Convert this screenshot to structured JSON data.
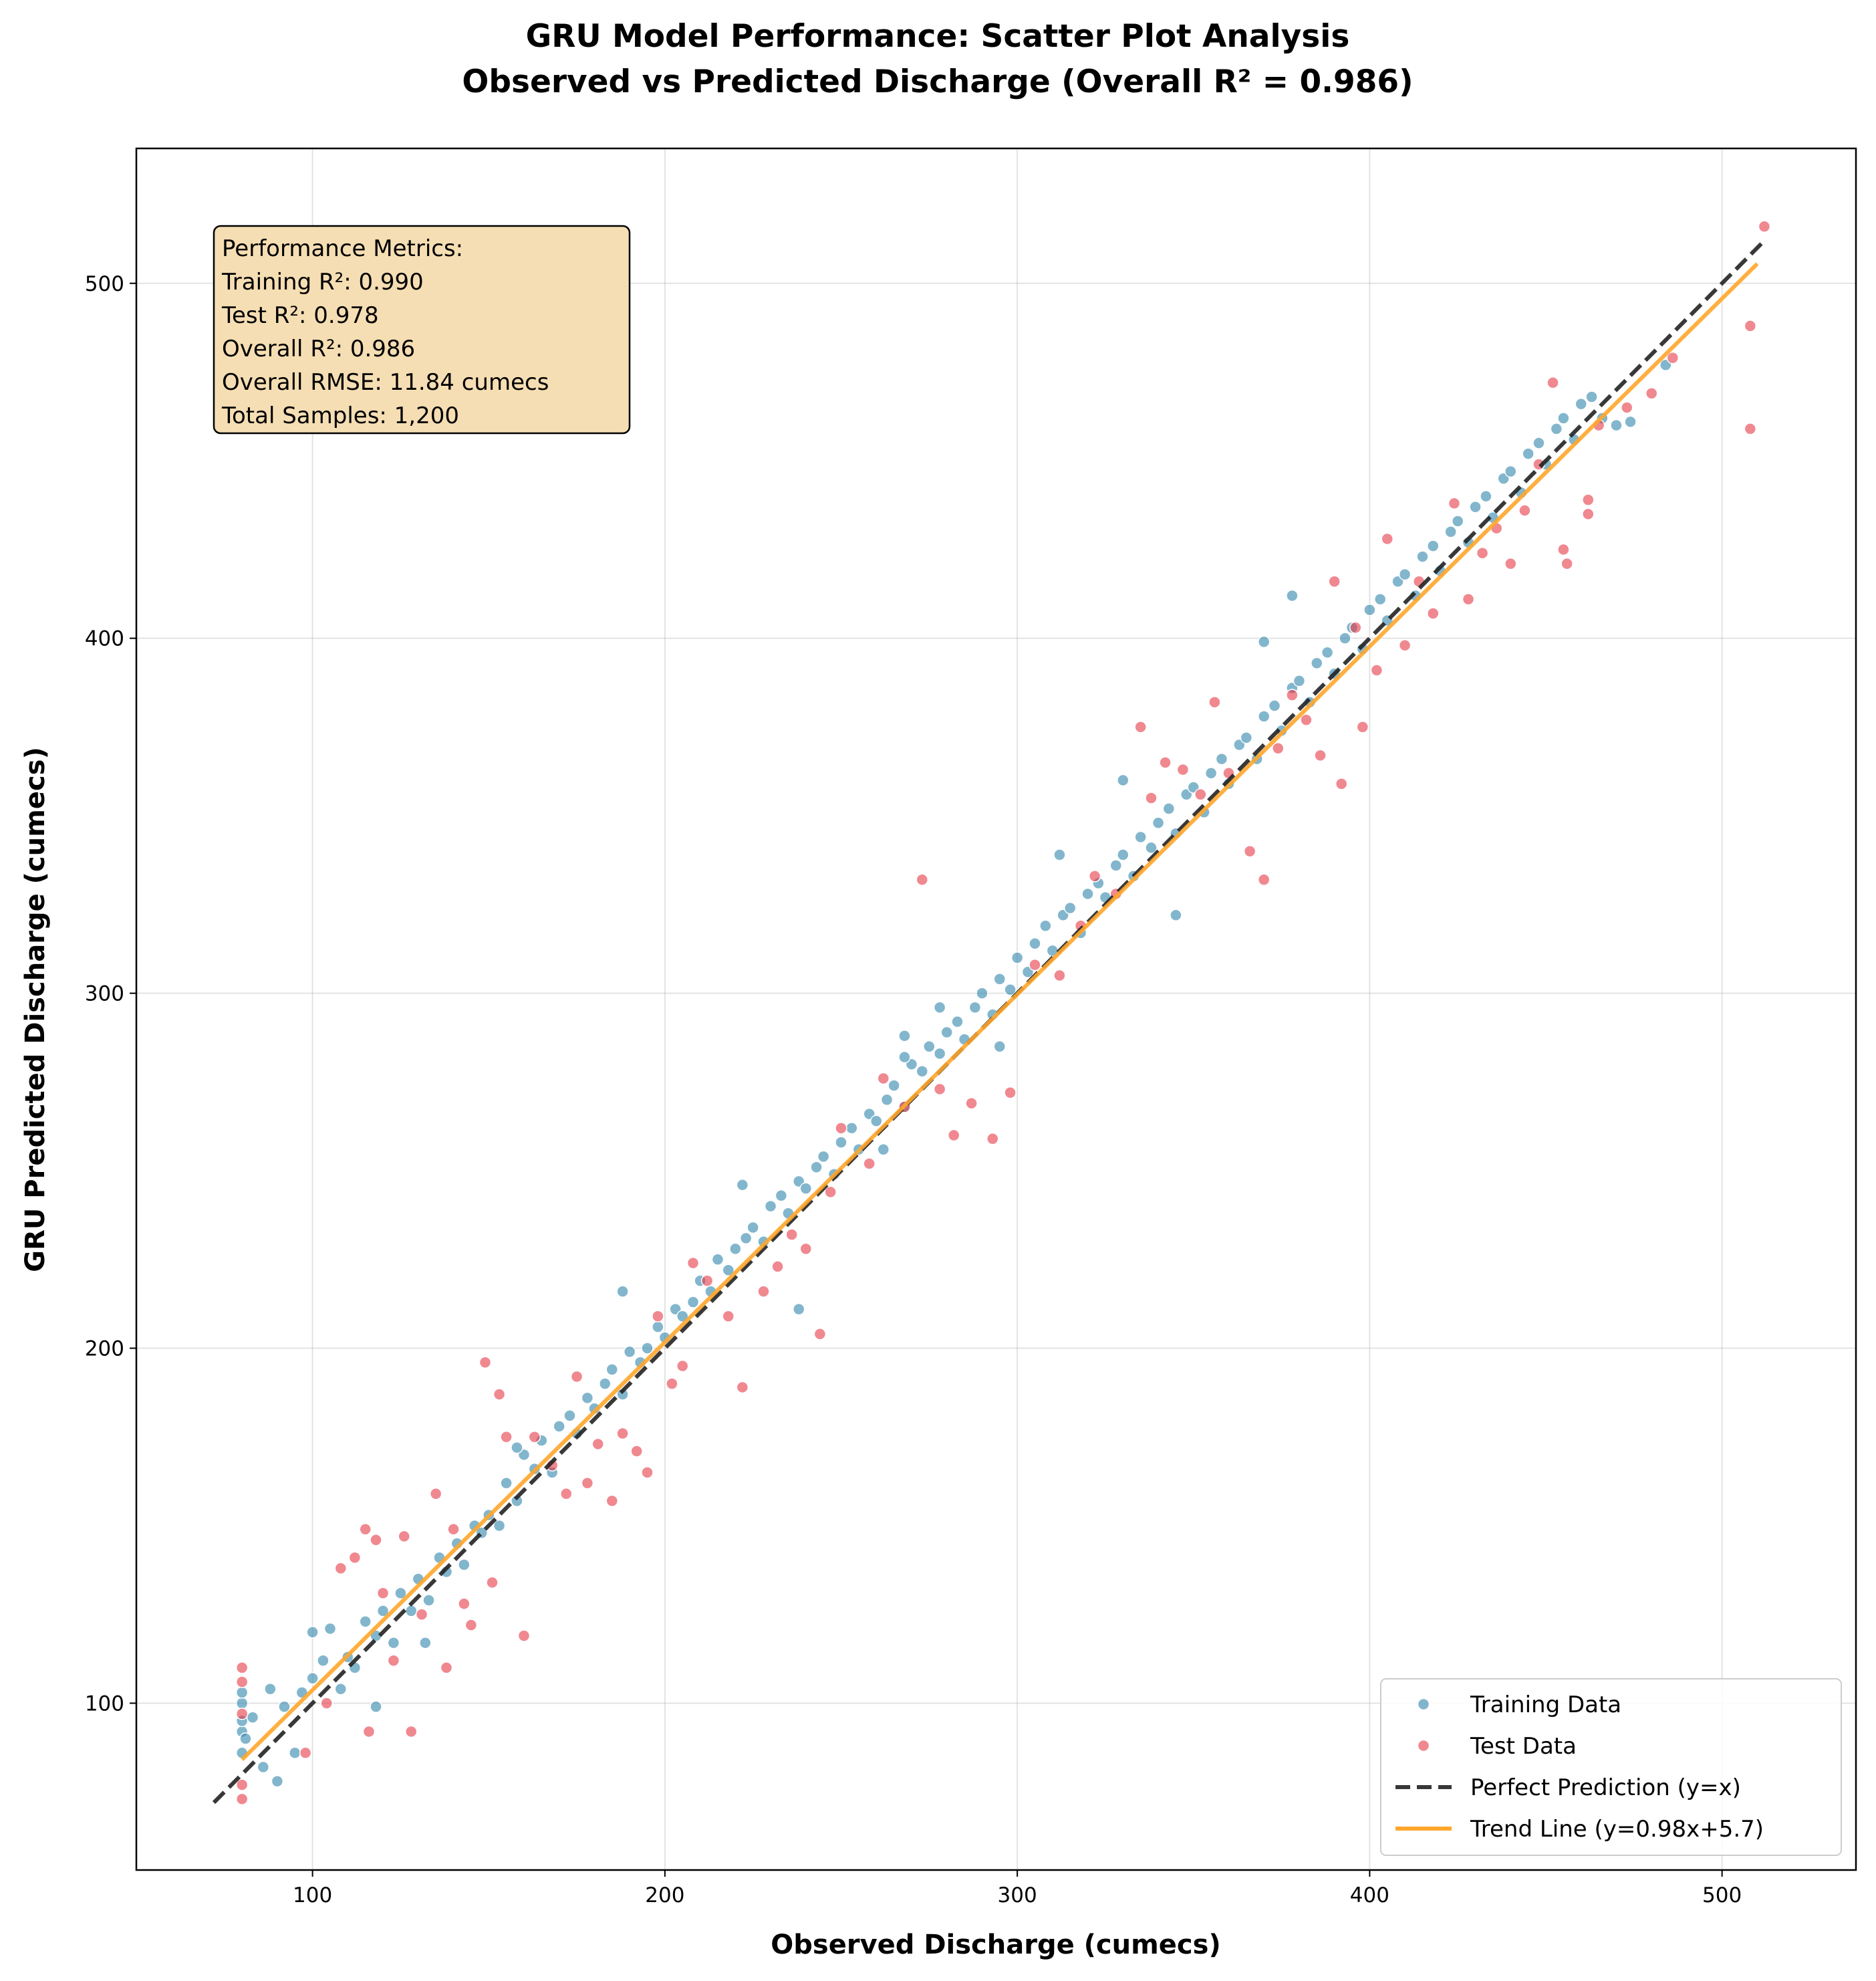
{
  "chart_data": {
    "type": "scatter",
    "title": "GRU Model Performance: Scatter Plot Analysis",
    "subtitle": "Observed vs Predicted Discharge (Overall R² = 0.986)",
    "xlabel": "Observed Discharge (cumecs)",
    "ylabel": "GRU Predicted Discharge (cumecs)",
    "xlim": [
      50,
      538
    ],
    "ylim": [
      53,
      538
    ],
    "xticks": [
      100,
      200,
      300,
      400,
      500
    ],
    "yticks": [
      100,
      200,
      300,
      400,
      500
    ],
    "grid": true,
    "legend_position": "lower-right",
    "metrics_box": {
      "heading": "Performance Metrics:",
      "lines": [
        "Training R²: 0.990",
        "Test R²: 0.978",
        "Overall R²: 0.986",
        "Overall RMSE: 11.84 cumecs",
        "Total Samples: 1,200"
      ]
    },
    "series": [
      {
        "name": "Training Data",
        "kind": "scatter",
        "color": "#2E86AB",
        "points": [
          [
            80,
            86
          ],
          [
            80,
            92
          ],
          [
            80,
            95
          ],
          [
            80,
            100
          ],
          [
            80,
            103
          ],
          [
            81,
            90
          ],
          [
            83,
            96
          ],
          [
            86,
            82
          ],
          [
            88,
            104
          ],
          [
            90,
            78
          ],
          [
            92,
            99
          ],
          [
            95,
            86
          ],
          [
            97,
            103
          ],
          [
            100,
            107
          ],
          [
            100,
            120
          ],
          [
            103,
            112
          ],
          [
            105,
            121
          ],
          [
            108,
            104
          ],
          [
            110,
            113
          ],
          [
            112,
            110
          ],
          [
            115,
            123
          ],
          [
            118,
            119
          ],
          [
            120,
            126
          ],
          [
            123,
            117
          ],
          [
            125,
            131
          ],
          [
            128,
            126
          ],
          [
            130,
            135
          ],
          [
            133,
            129
          ],
          [
            136,
            141
          ],
          [
            138,
            137
          ],
          [
            141,
            145
          ],
          [
            143,
            139
          ],
          [
            146,
            150
          ],
          [
            148,
            148
          ],
          [
            150,
            153
          ],
          [
            153,
            150
          ],
          [
            155,
            162
          ],
          [
            158,
            157
          ],
          [
            160,
            170
          ],
          [
            163,
            166
          ],
          [
            165,
            174
          ],
          [
            168,
            165
          ],
          [
            170,
            178
          ],
          [
            173,
            181
          ],
          [
            175,
            176
          ],
          [
            178,
            186
          ],
          [
            180,
            183
          ],
          [
            183,
            190
          ],
          [
            185,
            194
          ],
          [
            188,
            187
          ],
          [
            190,
            199
          ],
          [
            193,
            196
          ],
          [
            195,
            200
          ],
          [
            198,
            206
          ],
          [
            200,
            203
          ],
          [
            203,
            211
          ],
          [
            205,
            209
          ],
          [
            208,
            213
          ],
          [
            210,
            219
          ],
          [
            213,
            216
          ],
          [
            215,
            225
          ],
          [
            218,
            222
          ],
          [
            220,
            228
          ],
          [
            223,
            231
          ],
          [
            225,
            234
          ],
          [
            228,
            230
          ],
          [
            230,
            240
          ],
          [
            233,
            243
          ],
          [
            235,
            238
          ],
          [
            238,
            247
          ],
          [
            240,
            245
          ],
          [
            243,
            251
          ],
          [
            245,
            254
          ],
          [
            248,
            249
          ],
          [
            250,
            258
          ],
          [
            253,
            262
          ],
          [
            255,
            256
          ],
          [
            258,
            266
          ],
          [
            260,
            264
          ],
          [
            263,
            270
          ],
          [
            265,
            274
          ],
          [
            268,
            268
          ],
          [
            270,
            280
          ],
          [
            273,
            278
          ],
          [
            275,
            285
          ],
          [
            278,
            283
          ],
          [
            280,
            289
          ],
          [
            283,
            292
          ],
          [
            285,
            287
          ],
          [
            288,
            296
          ],
          [
            290,
            300
          ],
          [
            293,
            294
          ],
          [
            295,
            304
          ],
          [
            298,
            301
          ],
          [
            300,
            310
          ],
          [
            303,
            306
          ],
          [
            305,
            314
          ],
          [
            308,
            319
          ],
          [
            310,
            312
          ],
          [
            313,
            322
          ],
          [
            315,
            324
          ],
          [
            318,
            317
          ],
          [
            320,
            328
          ],
          [
            323,
            331
          ],
          [
            325,
            327
          ],
          [
            328,
            336
          ],
          [
            330,
            339
          ],
          [
            333,
            333
          ],
          [
            335,
            344
          ],
          [
            338,
            341
          ],
          [
            340,
            348
          ],
          [
            343,
            352
          ],
          [
            345,
            345
          ],
          [
            348,
            356
          ],
          [
            350,
            358
          ],
          [
            353,
            351
          ],
          [
            355,
            362
          ],
          [
            358,
            366
          ],
          [
            360,
            359
          ],
          [
            363,
            370
          ],
          [
            365,
            372
          ],
          [
            368,
            366
          ],
          [
            370,
            378
          ],
          [
            373,
            381
          ],
          [
            375,
            374
          ],
          [
            378,
            386
          ],
          [
            380,
            388
          ],
          [
            383,
            382
          ],
          [
            385,
            393
          ],
          [
            388,
            396
          ],
          [
            390,
            390
          ],
          [
            393,
            400
          ],
          [
            395,
            403
          ],
          [
            398,
            397
          ],
          [
            400,
            408
          ],
          [
            403,
            411
          ],
          [
            405,
            405
          ],
          [
            408,
            416
          ],
          [
            410,
            418
          ],
          [
            413,
            412
          ],
          [
            415,
            423
          ],
          [
            418,
            426
          ],
          [
            420,
            419
          ],
          [
            423,
            430
          ],
          [
            425,
            433
          ],
          [
            428,
            427
          ],
          [
            430,
            437
          ],
          [
            433,
            440
          ],
          [
            435,
            434
          ],
          [
            438,
            445
          ],
          [
            440,
            447
          ],
          [
            443,
            441
          ],
          [
            445,
            452
          ],
          [
            448,
            455
          ],
          [
            450,
            449
          ],
          [
            453,
            459
          ],
          [
            455,
            462
          ],
          [
            458,
            456
          ],
          [
            460,
            466
          ],
          [
            463,
            468
          ],
          [
            466,
            462
          ],
          [
            470,
            460
          ],
          [
            474,
            461
          ],
          [
            484,
            477
          ],
          [
            330,
            360
          ],
          [
            312,
            339
          ],
          [
            278,
            296
          ],
          [
            378,
            412
          ],
          [
            370,
            399
          ],
          [
            238,
            211
          ],
          [
            268,
            288
          ],
          [
            295,
            285
          ],
          [
            262,
            256
          ],
          [
            222,
            246
          ],
          [
            188,
            216
          ],
          [
            158,
            172
          ],
          [
            132,
            117
          ],
          [
            118,
            99
          ],
          [
            268,
            282
          ],
          [
            345,
            322
          ]
        ]
      },
      {
        "name": "Test Data",
        "kind": "scatter",
        "color": "#E63946",
        "points": [
          [
            80,
            73
          ],
          [
            80,
            77
          ],
          [
            80,
            97
          ],
          [
            80,
            106
          ],
          [
            80,
            110
          ],
          [
            98,
            86
          ],
          [
            104,
            100
          ],
          [
            108,
            138
          ],
          [
            112,
            141
          ],
          [
            115,
            149
          ],
          [
            116,
            92
          ],
          [
            118,
            146
          ],
          [
            120,
            131
          ],
          [
            123,
            112
          ],
          [
            126,
            147
          ],
          [
            128,
            92
          ],
          [
            131,
            125
          ],
          [
            135,
            159
          ],
          [
            138,
            110
          ],
          [
            140,
            149
          ],
          [
            143,
            128
          ],
          [
            145,
            122
          ],
          [
            149,
            196
          ],
          [
            151,
            134
          ],
          [
            153,
            187
          ],
          [
            155,
            175
          ],
          [
            160,
            119
          ],
          [
            163,
            175
          ],
          [
            168,
            167
          ],
          [
            172,
            159
          ],
          [
            175,
            192
          ],
          [
            178,
            162
          ],
          [
            181,
            173
          ],
          [
            185,
            157
          ],
          [
            188,
            176
          ],
          [
            192,
            171
          ],
          [
            195,
            165
          ],
          [
            198,
            209
          ],
          [
            202,
            190
          ],
          [
            205,
            195
          ],
          [
            208,
            224
          ],
          [
            212,
            219
          ],
          [
            218,
            209
          ],
          [
            222,
            189
          ],
          [
            228,
            216
          ],
          [
            232,
            223
          ],
          [
            236,
            232
          ],
          [
            240,
            228
          ],
          [
            244,
            204
          ],
          [
            247,
            244
          ],
          [
            250,
            262
          ],
          [
            258,
            252
          ],
          [
            262,
            276
          ],
          [
            268,
            268
          ],
          [
            273,
            332
          ],
          [
            278,
            273
          ],
          [
            282,
            260
          ],
          [
            287,
            269
          ],
          [
            293,
            259
          ],
          [
            298,
            272
          ],
          [
            305,
            308
          ],
          [
            312,
            305
          ],
          [
            318,
            319
          ],
          [
            322,
            333
          ],
          [
            328,
            328
          ],
          [
            335,
            375
          ],
          [
            338,
            355
          ],
          [
            342,
            365
          ],
          [
            347,
            363
          ],
          [
            352,
            356
          ],
          [
            356,
            382
          ],
          [
            360,
            362
          ],
          [
            366,
            340
          ],
          [
            370,
            332
          ],
          [
            374,
            369
          ],
          [
            378,
            384
          ],
          [
            382,
            377
          ],
          [
            386,
            367
          ],
          [
            390,
            416
          ],
          [
            392,
            359
          ],
          [
            396,
            403
          ],
          [
            398,
            375
          ],
          [
            402,
            391
          ],
          [
            405,
            428
          ],
          [
            410,
            398
          ],
          [
            414,
            416
          ],
          [
            418,
            407
          ],
          [
            424,
            438
          ],
          [
            428,
            411
          ],
          [
            432,
            424
          ],
          [
            436,
            431
          ],
          [
            440,
            421
          ],
          [
            444,
            436
          ],
          [
            448,
            449
          ],
          [
            452,
            472
          ],
          [
            455,
            425
          ],
          [
            456,
            421
          ],
          [
            462,
            439
          ],
          [
            462,
            435
          ],
          [
            465,
            460
          ],
          [
            473,
            465
          ],
          [
            480,
            469
          ],
          [
            486,
            479
          ],
          [
            508,
            488
          ],
          [
            508,
            459
          ],
          [
            512,
            516
          ]
        ]
      },
      {
        "name": "Perfect Prediction (y=x)",
        "kind": "line",
        "style": "dashed",
        "color": "#222222",
        "points": [
          [
            72,
            72
          ],
          [
            512,
            512
          ]
        ]
      },
      {
        "name": "Trend Line (y=0.98x+5.7)",
        "kind": "line",
        "style": "solid",
        "color": "#FFA62B",
        "slope": 0.98,
        "intercept": 5.7,
        "points": [
          [
            80,
            84.1
          ],
          [
            510,
            505.5
          ]
        ]
      }
    ]
  }
}
